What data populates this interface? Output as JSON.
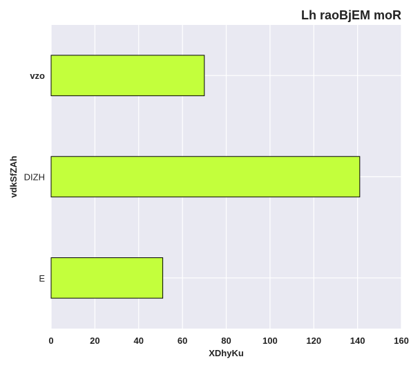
{
  "chart_data": {
    "type": "bar",
    "orientation": "horizontal",
    "title": "Lh raoBjEM moR",
    "xlabel": "XDhyKu",
    "ylabel": "vdkSfZAh",
    "categories": [
      "vzo",
      "DIZH",
      "E"
    ],
    "values": [
      70,
      141,
      51
    ],
    "xlim": [
      0,
      160
    ],
    "xticks": [
      0,
      20,
      40,
      60,
      80,
      100,
      120,
      140,
      160
    ],
    "grid": true,
    "bar_color": "#c3ff3c",
    "bar_edge_color": "#000000",
    "plot_background": "#e9e9f2",
    "grid_color": "#ffffff"
  }
}
